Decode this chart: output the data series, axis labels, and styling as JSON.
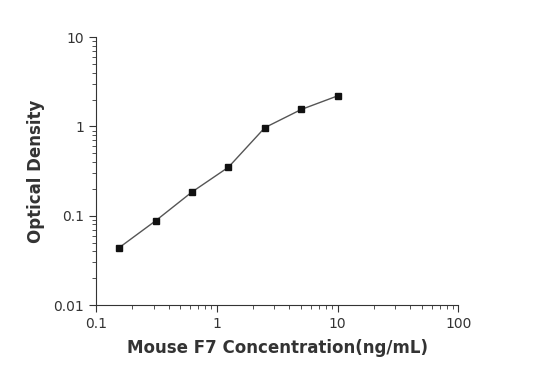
{
  "x": [
    0.156,
    0.3125,
    0.625,
    1.25,
    2.5,
    5.0,
    10.0
  ],
  "y": [
    0.044,
    0.088,
    0.185,
    0.35,
    0.97,
    1.55,
    2.2
  ],
  "xlabel": "Mouse F7 Concentration(ng/mL)",
  "ylabel": "Optical Density",
  "xlim": [
    0.1,
    100
  ],
  "ylim": [
    0.01,
    10
  ],
  "line_color": "#555555",
  "marker": "s",
  "marker_color": "#111111",
  "marker_size": 5,
  "linewidth": 1.0,
  "background_color": "#ffffff",
  "axis_color": "#333333",
  "tick_color": "#333333",
  "xlabel_fontsize": 12,
  "ylabel_fontsize": 12,
  "tick_fontsize": 10,
  "xtick_labels": [
    "0.1",
    "1",
    "10",
    "100"
  ],
  "xtick_vals": [
    0.1,
    1,
    10,
    100
  ],
  "ytick_labels": [
    "0.01",
    "0.1",
    "1",
    "10"
  ],
  "ytick_vals": [
    0.01,
    0.1,
    1,
    10
  ]
}
